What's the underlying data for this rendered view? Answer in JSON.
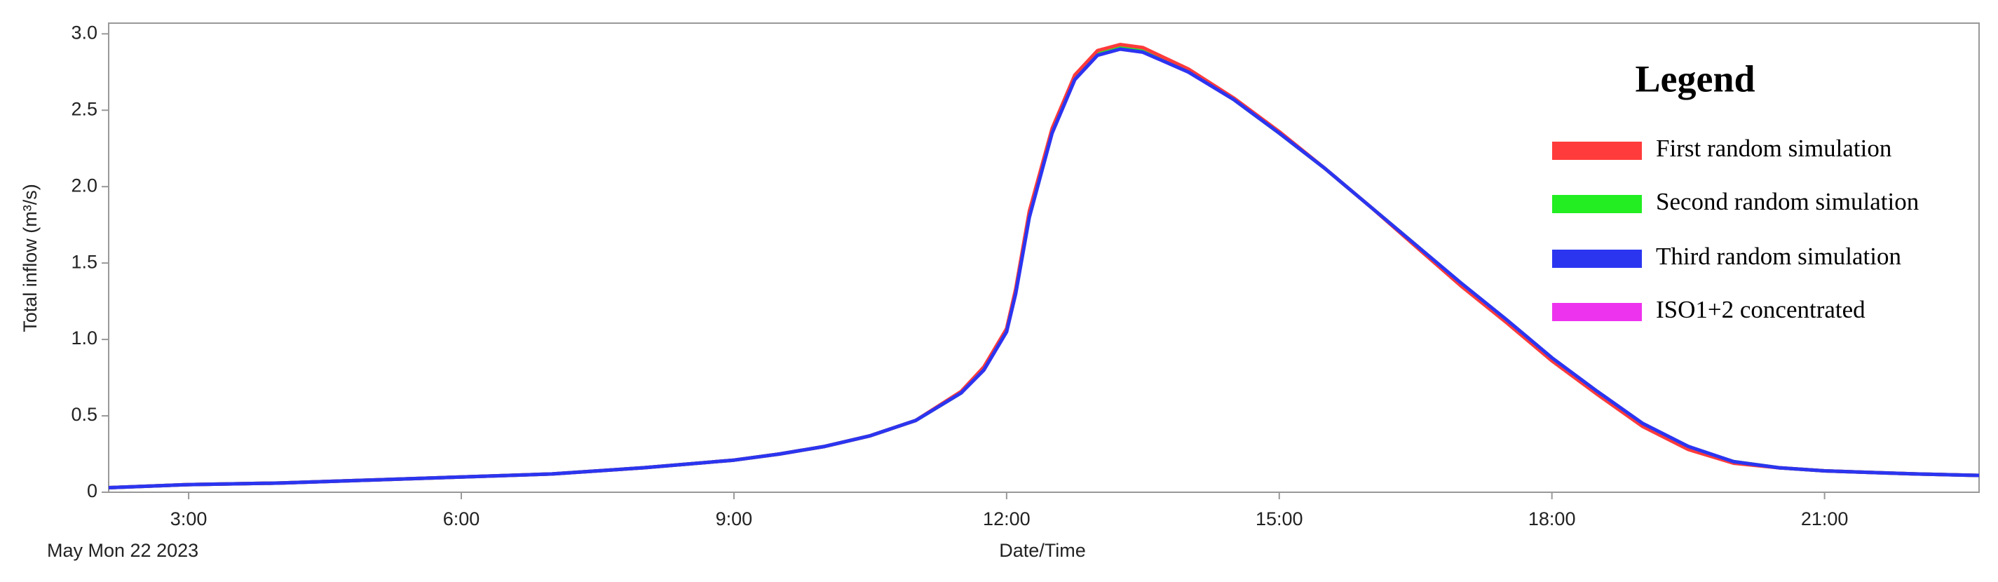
{
  "chart_data": {
    "type": "line",
    "x_label": "Date/Time",
    "x_sublabel": "May Mon 22 2023",
    "y_label": "Total inflow (m³/s)",
    "legend_title": "Legend",
    "legend": "upper right",
    "x": [
      2.12,
      3,
      4,
      5,
      6,
      7,
      8,
      9,
      9.5,
      10,
      10.5,
      11,
      11.5,
      11.75,
      12,
      12.1,
      12.25,
      12.5,
      12.75,
      13,
      13.25,
      13.5,
      14,
      14.5,
      15,
      15.5,
      16,
      16.5,
      17,
      17.5,
      18,
      18.5,
      19,
      19.5,
      20,
      20.5,
      21,
      21.5,
      22,
      22.7
    ],
    "series": [
      {
        "name": "First random simulation",
        "color": "#ff3b3b",
        "values": [
          0.03,
          0.05,
          0.06,
          0.08,
          0.1,
          0.12,
          0.16,
          0.21,
          0.25,
          0.3,
          0.37,
          0.47,
          0.66,
          0.82,
          1.07,
          1.33,
          1.84,
          2.38,
          2.73,
          2.89,
          2.93,
          2.91,
          2.77,
          2.58,
          2.36,
          2.12,
          1.87,
          1.61,
          1.35,
          1.11,
          0.86,
          0.64,
          0.43,
          0.28,
          0.19,
          0.16,
          0.14,
          0.13,
          0.12,
          0.11
        ]
      },
      {
        "name": "Second random simulation",
        "color": "#22ee22",
        "values": [
          0.03,
          0.05,
          0.06,
          0.08,
          0.1,
          0.12,
          0.16,
          0.21,
          0.25,
          0.3,
          0.37,
          0.47,
          0.65,
          0.81,
          1.06,
          1.31,
          1.82,
          2.36,
          2.71,
          2.87,
          2.91,
          2.89,
          2.76,
          2.57,
          2.35,
          2.12,
          1.87,
          1.62,
          1.36,
          1.12,
          0.87,
          0.65,
          0.44,
          0.29,
          0.2,
          0.16,
          0.14,
          0.13,
          0.12,
          0.11
        ]
      },
      {
        "name": "Third random simulation",
        "color": "#2b35f0",
        "values": [
          0.03,
          0.05,
          0.06,
          0.08,
          0.1,
          0.12,
          0.16,
          0.21,
          0.25,
          0.3,
          0.37,
          0.47,
          0.65,
          0.8,
          1.05,
          1.3,
          1.8,
          2.35,
          2.7,
          2.86,
          2.9,
          2.88,
          2.75,
          2.57,
          2.35,
          2.12,
          1.87,
          1.62,
          1.37,
          1.13,
          0.88,
          0.66,
          0.45,
          0.3,
          0.2,
          0.16,
          0.14,
          0.13,
          0.12,
          0.11
        ]
      },
      {
        "name": "ISO1+2 concentrated",
        "color": "#ee33ee",
        "values": [
          0.03,
          0.05,
          0.06,
          0.08,
          0.1,
          0.12,
          0.16,
          0.21,
          0.25,
          0.3,
          0.37,
          0.47,
          0.65,
          0.8,
          1.05,
          1.3,
          1.81,
          2.35,
          2.7,
          2.86,
          2.9,
          2.88,
          2.75,
          2.57,
          2.35,
          2.12,
          1.87,
          1.62,
          1.36,
          1.12,
          0.87,
          0.65,
          0.44,
          0.29,
          0.2,
          0.16,
          0.14,
          0.13,
          0.12,
          0.11
        ]
      }
    ],
    "xlim": [
      2.12,
      22.7
    ],
    "xticks": [
      {
        "value": 3,
        "label": "3:00"
      },
      {
        "value": 6,
        "label": "6:00"
      },
      {
        "value": 9,
        "label": "9:00"
      },
      {
        "value": 12,
        "label": "12:00"
      },
      {
        "value": 15,
        "label": "15:00"
      },
      {
        "value": 18,
        "label": "18:00"
      },
      {
        "value": 21,
        "label": "21:00"
      }
    ],
    "ylim": [
      0,
      3.07
    ],
    "yticks": [
      0,
      0.5,
      {
        "value": 1,
        "label": "1.0"
      },
      1.5,
      {
        "value": 2,
        "label": "2.0"
      },
      2.5,
      {
        "value": 3,
        "label": "3.0"
      }
    ],
    "grid": false
  }
}
